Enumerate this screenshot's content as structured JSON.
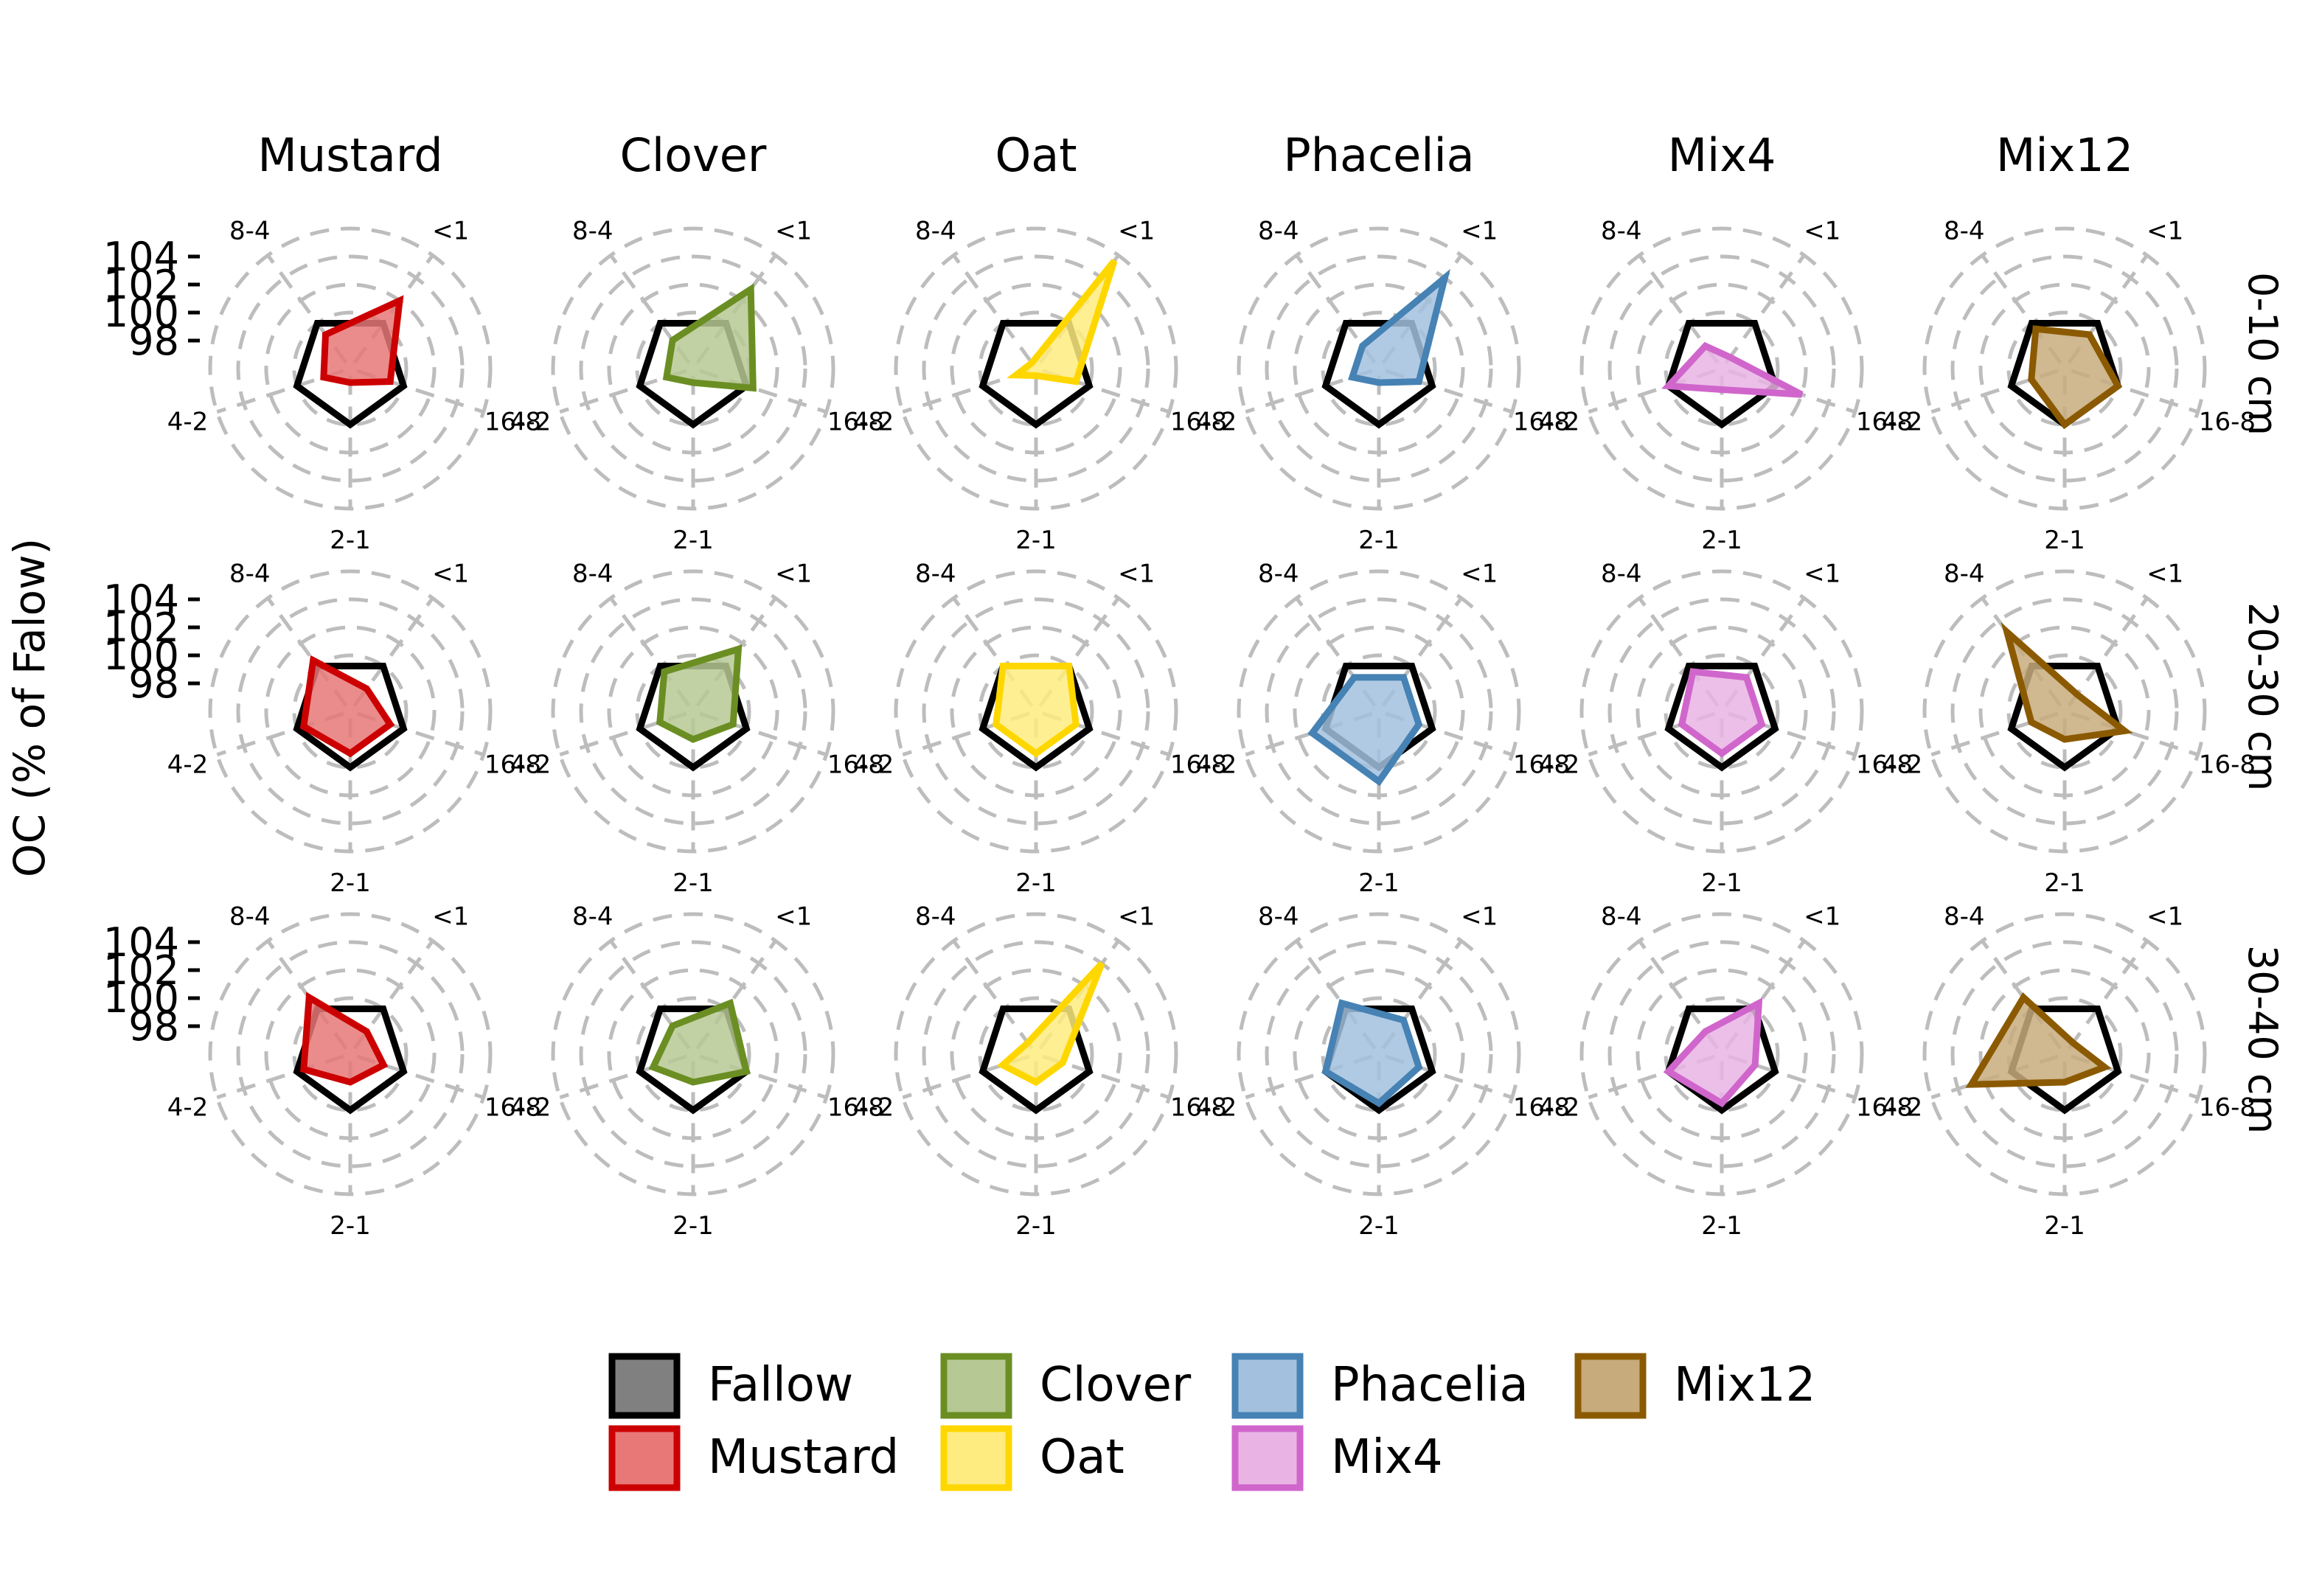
{
  "chart_data": {
    "type": "radar",
    "ylabel": "OC (% of Falow)",
    "axes": [
      "<1",
      "16-8",
      "2-1",
      "4-2",
      "8-4"
    ],
    "rlim": [
      96,
      106
    ],
    "r_ticks": [
      98,
      100,
      102,
      104
    ],
    "columns": [
      "Mustard",
      "Clover",
      "Oat",
      "Phacelia",
      "Mix4",
      "Mix12"
    ],
    "rows": [
      "0-10 cm",
      "20-30 cm",
      "30-40 cm"
    ],
    "reference_series": "Fallow",
    "legend": {
      "placement": "bottom",
      "items": [
        {
          "name": "Fallow",
          "fill": "#808080",
          "stroke": "#000000"
        },
        {
          "name": "Mustard",
          "fill": "#e87878",
          "stroke": "#cc0000"
        },
        {
          "name": "Clover",
          "fill": "#b6c994",
          "stroke": "#6b8e23"
        },
        {
          "name": "Oat",
          "fill": "#ffec80",
          "stroke": "#ffd700"
        },
        {
          "name": "Phacelia",
          "fill": "#a3c1de",
          "stroke": "#4682b4"
        },
        {
          "name": "Mix4",
          "fill": "#e9b4e4",
          "stroke": "#d066cc"
        },
        {
          "name": "Mix12",
          "fill": "#c8ab7c",
          "stroke": "#8b5a00"
        }
      ]
    },
    "series": [
      {
        "name": "Fallow",
        "values": [
          100,
          100,
          100,
          100,
          100
        ]
      },
      {
        "name": "Mustard",
        "row": "0-10 cm",
        "values": [
          102,
          99,
          97,
          98,
          99
        ]
      },
      {
        "name": "Clover",
        "row": "0-10 cm",
        "values": [
          103,
          100.5,
          97,
          98,
          98.5
        ]
      },
      {
        "name": "Oat",
        "row": "0-10 cm",
        "values": [
          105.5,
          99,
          96.5,
          97.5,
          96.5
        ]
      },
      {
        "name": "Phacelia",
        "row": "0-10 cm",
        "values": [
          104,
          99,
          97,
          98,
          98
        ]
      },
      {
        "name": "Mix4",
        "row": "0-10 cm",
        "values": [
          97,
          102,
          97.5,
          100,
          98
        ]
      },
      {
        "name": "Mix12",
        "row": "0-10 cm",
        "values": [
          99,
          100,
          100,
          98.5,
          99.5
        ]
      },
      {
        "name": "Mustard",
        "row": "20-30 cm",
        "values": [
          98,
          99,
          99,
          99.5,
          100.5
        ]
      },
      {
        "name": "Clover",
        "row": "20-30 cm",
        "values": [
          101.5,
          99,
          98,
          98.5,
          99.5
        ]
      },
      {
        "name": "Oat",
        "row": "20-30 cm",
        "values": [
          100,
          99,
          99,
          99,
          100
        ]
      },
      {
        "name": "Phacelia",
        "row": "20-30 cm",
        "values": [
          99,
          99,
          101,
          101,
          99
        ]
      },
      {
        "name": "Mix4",
        "row": "20-30 cm",
        "values": [
          99,
          99,
          99,
          99,
          99.5
        ]
      },
      {
        "name": "Mix12",
        "row": "20-30 cm",
        "values": [
          97.5,
          100.5,
          98,
          98.5,
          103
        ]
      },
      {
        "name": "Mustard",
        "row": "30-40 cm",
        "values": [
          98,
          98.5,
          98,
          99.5,
          101
        ]
      },
      {
        "name": "Clover",
        "row": "30-40 cm",
        "values": [
          100.5,
          100,
          98,
          99,
          98.5
        ]
      },
      {
        "name": "Oat",
        "row": "30-40 cm",
        "values": [
          104,
          98,
          98,
          98.5,
          97
        ]
      },
      {
        "name": "Phacelia",
        "row": "30-40 cm",
        "values": [
          99,
          99,
          99.5,
          100,
          100.5
        ]
      },
      {
        "name": "Mix4",
        "row": "30-40 cm",
        "values": [
          100.5,
          98.5,
          99.5,
          100,
          98
        ]
      },
      {
        "name": "Mix12",
        "row": "30-40 cm",
        "values": [
          97,
          99,
          98,
          103,
          101
        ]
      }
    ]
  }
}
